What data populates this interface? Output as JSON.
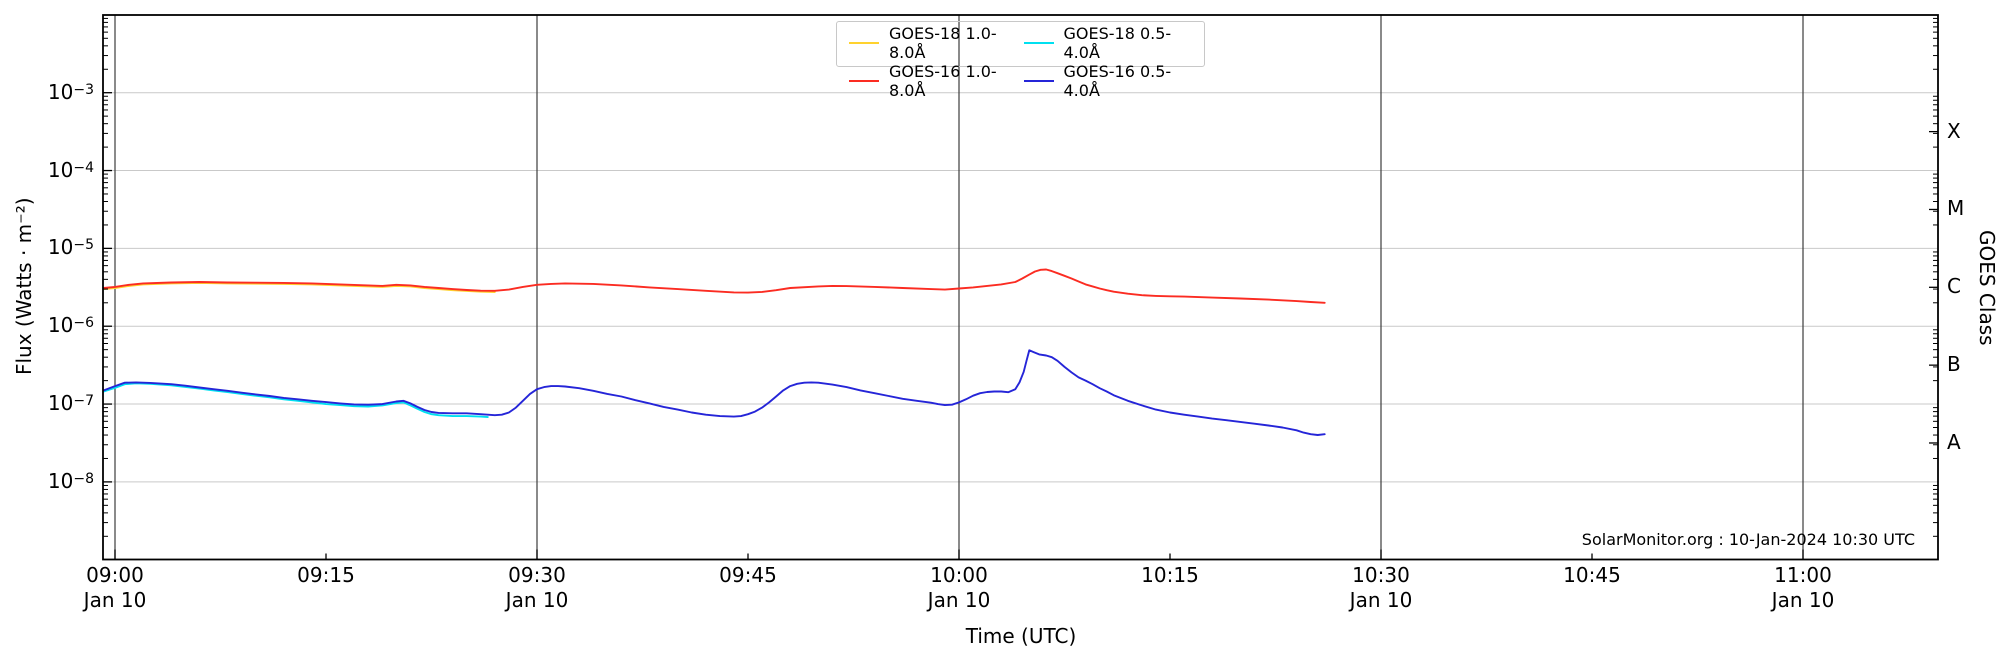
{
  "chart_data": {
    "type": "line",
    "title": "",
    "xlabel": "Time (UTC)",
    "ylabel": "Flux (Watts · m⁻²)",
    "right_axis_label": "GOES Class",
    "source_note": "SolarMonitor.org : 10-Jan-2024 10:30 UTC",
    "legend": {
      "position": "top-center",
      "columns": 2
    },
    "x_axis": {
      "unit": "minutes after 09:00 UTC",
      "date_label": "Jan 10",
      "ticks": [
        {
          "label": "09:00",
          "minutes": 0,
          "date": "Jan 10"
        },
        {
          "label": "09:15",
          "minutes": 15
        },
        {
          "label": "09:30",
          "minutes": 30,
          "date": "Jan 10"
        },
        {
          "label": "09:45",
          "minutes": 45
        },
        {
          "label": "10:00",
          "minutes": 60,
          "date": "Jan 10"
        },
        {
          "label": "10:15",
          "minutes": 75
        },
        {
          "label": "10:30",
          "minutes": 90,
          "date": "Jan 10"
        },
        {
          "label": "10:45",
          "minutes": 105
        },
        {
          "label": "11:00",
          "minutes": 120,
          "date": "Jan 10"
        }
      ],
      "halfhour_gridlines_minutes": [
        0,
        30,
        60,
        90,
        120
      ]
    },
    "y_axis": {
      "scale": "log",
      "min": 1e-09,
      "max": 0.01,
      "ticks": [
        {
          "base": "10",
          "exp": "−3",
          "exponent": -3
        },
        {
          "base": "10",
          "exp": "−4",
          "exponent": -4
        },
        {
          "base": "10",
          "exp": "−5",
          "exponent": -5
        },
        {
          "base": "10",
          "exp": "−6",
          "exponent": -6
        },
        {
          "base": "10",
          "exp": "−7",
          "exponent": -7
        },
        {
          "base": "10",
          "exp": "−8",
          "exponent": -8
        }
      ]
    },
    "right_axis": {
      "classes": [
        {
          "label": "X",
          "exponent": -3.5
        },
        {
          "label": "M",
          "exponent": -4.5
        },
        {
          "label": "C",
          "exponent": -5.5
        },
        {
          "label": "B",
          "exponent": -6.5
        },
        {
          "label": "A",
          "exponent": -7.5
        }
      ]
    },
    "series": [
      {
        "name": "GOES-18 1.0-8.0Å",
        "color": "#ffd22e",
        "points": [
          [
            -0.8,
            3e-06
          ],
          [
            0,
            3.1e-06
          ],
          [
            1,
            3.3e-06
          ],
          [
            2,
            3.45e-06
          ],
          [
            4,
            3.55e-06
          ],
          [
            6,
            3.6e-06
          ],
          [
            8,
            3.55e-06
          ],
          [
            10,
            3.52e-06
          ],
          [
            12,
            3.5e-06
          ],
          [
            14,
            3.45e-06
          ],
          [
            16,
            3.35e-06
          ],
          [
            18,
            3.25e-06
          ],
          [
            19,
            3.2e-06
          ],
          [
            20,
            3.3e-06
          ],
          [
            21,
            3.25e-06
          ],
          [
            22,
            3.1e-06
          ],
          [
            23,
            3e-06
          ],
          [
            24,
            2.9e-06
          ],
          [
            25,
            2.84e-06
          ],
          [
            26,
            2.78e-06
          ],
          [
            27,
            2.75e-06
          ]
        ]
      },
      {
        "name": "GOES-16 1.0-8.0Å",
        "color": "#fb2c22",
        "points": [
          [
            -0.8,
            3.1e-06
          ],
          [
            0,
            3.2e-06
          ],
          [
            1,
            3.4e-06
          ],
          [
            2,
            3.55e-06
          ],
          [
            4,
            3.65e-06
          ],
          [
            6,
            3.7e-06
          ],
          [
            8,
            3.65e-06
          ],
          [
            10,
            3.62e-06
          ],
          [
            12,
            3.6e-06
          ],
          [
            14,
            3.55e-06
          ],
          [
            16,
            3.45e-06
          ],
          [
            18,
            3.35e-06
          ],
          [
            19,
            3.3e-06
          ],
          [
            20,
            3.4e-06
          ],
          [
            21,
            3.35e-06
          ],
          [
            22,
            3.2e-06
          ],
          [
            23,
            3.1e-06
          ],
          [
            24,
            3e-06
          ],
          [
            25,
            2.92e-06
          ],
          [
            26,
            2.86e-06
          ],
          [
            27,
            2.85e-06
          ],
          [
            28,
            2.95e-06
          ],
          [
            29,
            3.2e-06
          ],
          [
            30,
            3.4e-06
          ],
          [
            31,
            3.5e-06
          ],
          [
            32,
            3.55e-06
          ],
          [
            34,
            3.5e-06
          ],
          [
            36,
            3.35e-06
          ],
          [
            38,
            3.15e-06
          ],
          [
            40,
            3e-06
          ],
          [
            42,
            2.85e-06
          ],
          [
            44,
            2.72e-06
          ],
          [
            45,
            2.7e-06
          ],
          [
            46,
            2.76e-06
          ],
          [
            47,
            2.9e-06
          ],
          [
            48,
            3.1e-06
          ],
          [
            50,
            3.25e-06
          ],
          [
            51,
            3.3e-06
          ],
          [
            52,
            3.28e-06
          ],
          [
            54,
            3.2e-06
          ],
          [
            56,
            3.1e-06
          ],
          [
            58,
            3e-06
          ],
          [
            59,
            2.95e-06
          ],
          [
            60,
            3.05e-06
          ],
          [
            61,
            3.15e-06
          ],
          [
            62,
            3.3e-06
          ],
          [
            63,
            3.45e-06
          ],
          [
            64,
            3.7e-06
          ],
          [
            64.5,
            4.1e-06
          ],
          [
            65,
            4.6e-06
          ],
          [
            65.4,
            5.05e-06
          ],
          [
            65.8,
            5.3e-06
          ],
          [
            66.2,
            5.35e-06
          ],
          [
            66.6,
            5.1e-06
          ],
          [
            67,
            4.8e-06
          ],
          [
            67.5,
            4.45e-06
          ],
          [
            68,
            4.1e-06
          ],
          [
            68.5,
            3.75e-06
          ],
          [
            69,
            3.45e-06
          ],
          [
            69.5,
            3.25e-06
          ],
          [
            70,
            3.05e-06
          ],
          [
            70.5,
            2.9e-06
          ],
          [
            71,
            2.78e-06
          ],
          [
            72,
            2.62e-06
          ],
          [
            73,
            2.5e-06
          ],
          [
            74,
            2.45e-06
          ],
          [
            75,
            2.42e-06
          ],
          [
            76,
            2.4e-06
          ],
          [
            78,
            2.33e-06
          ],
          [
            80,
            2.27e-06
          ],
          [
            82,
            2.2e-06
          ],
          [
            84,
            2.1e-06
          ],
          [
            85,
            2.05e-06
          ],
          [
            86,
            2e-06
          ]
        ]
      },
      {
        "name": "GOES-18 0.5-4.0Å",
        "color": "#00e0f0",
        "points": [
          [
            -0.8,
            1.45e-07
          ],
          [
            0,
            1.62e-07
          ],
          [
            0.7,
            1.8e-07
          ],
          [
            1.5,
            1.85e-07
          ],
          [
            2.5,
            1.82e-07
          ],
          [
            4,
            1.74e-07
          ],
          [
            5,
            1.66e-07
          ],
          [
            6,
            1.58e-07
          ],
          [
            7,
            1.5e-07
          ],
          [
            8,
            1.43e-07
          ],
          [
            9,
            1.35e-07
          ],
          [
            10,
            1.28e-07
          ],
          [
            11,
            1.22e-07
          ],
          [
            12,
            1.15e-07
          ],
          [
            13,
            1.1e-07
          ],
          [
            14,
            1.05e-07
          ],
          [
            15,
            1e-07
          ],
          [
            16,
            9.7e-08
          ],
          [
            17,
            9.4e-08
          ],
          [
            18,
            9.3e-08
          ],
          [
            19,
            9.6e-08
          ],
          [
            20,
            1.03e-07
          ],
          [
            20.5,
            1.05e-07
          ],
          [
            21,
            9.6e-08
          ],
          [
            21.5,
            8.7e-08
          ],
          [
            22,
            7.9e-08
          ],
          [
            22.5,
            7.4e-08
          ],
          [
            23,
            7.2e-08
          ],
          [
            24,
            7e-08
          ],
          [
            25,
            7e-08
          ],
          [
            26,
            6.9e-08
          ],
          [
            26.5,
            6.8e-08
          ]
        ]
      },
      {
        "name": "GOES-16 0.5-4.0Å",
        "color": "#2525d8",
        "points": [
          [
            -0.8,
            1.5e-07
          ],
          [
            0,
            1.7e-07
          ],
          [
            0.7,
            1.88e-07
          ],
          [
            1.5,
            1.9e-07
          ],
          [
            2.5,
            1.87e-07
          ],
          [
            4,
            1.8e-07
          ],
          [
            5,
            1.72e-07
          ],
          [
            6,
            1.63e-07
          ],
          [
            7,
            1.55e-07
          ],
          [
            8,
            1.48e-07
          ],
          [
            9,
            1.4e-07
          ],
          [
            10,
            1.33e-07
          ],
          [
            11,
            1.27e-07
          ],
          [
            12,
            1.2e-07
          ],
          [
            13,
            1.15e-07
          ],
          [
            14,
            1.1e-07
          ],
          [
            15,
            1.06e-07
          ],
          [
            16,
            1.02e-07
          ],
          [
            17,
            9.9e-08
          ],
          [
            18,
            9.8e-08
          ],
          [
            19,
            1e-07
          ],
          [
            20,
            1.08e-07
          ],
          [
            20.5,
            1.1e-07
          ],
          [
            21,
            1.02e-07
          ],
          [
            21.5,
            9.2e-08
          ],
          [
            22,
            8.4e-08
          ],
          [
            22.5,
            7.9e-08
          ],
          [
            23,
            7.7e-08
          ],
          [
            24,
            7.6e-08
          ],
          [
            25,
            7.6e-08
          ],
          [
            26,
            7.4e-08
          ],
          [
            27,
            7.2e-08
          ],
          [
            27.5,
            7.3e-08
          ],
          [
            28,
            7.8e-08
          ],
          [
            28.5,
            9e-08
          ],
          [
            29,
            1.1e-07
          ],
          [
            29.5,
            1.35e-07
          ],
          [
            30,
            1.55e-07
          ],
          [
            30.5,
            1.65e-07
          ],
          [
            31,
            1.7e-07
          ],
          [
            31.5,
            1.7e-07
          ],
          [
            32,
            1.68e-07
          ],
          [
            33,
            1.6e-07
          ],
          [
            34,
            1.48e-07
          ],
          [
            35,
            1.35e-07
          ],
          [
            36,
            1.25e-07
          ],
          [
            37,
            1.12e-07
          ],
          [
            38,
            1.02e-07
          ],
          [
            39,
            9.2e-08
          ],
          [
            40,
            8.5e-08
          ],
          [
            41,
            7.8e-08
          ],
          [
            42,
            7.3e-08
          ],
          [
            43,
            7e-08
          ],
          [
            44,
            6.9e-08
          ],
          [
            44.5,
            7e-08
          ],
          [
            45,
            7.4e-08
          ],
          [
            45.5,
            8e-08
          ],
          [
            46,
            9e-08
          ],
          [
            46.5,
            1.05e-07
          ],
          [
            47,
            1.25e-07
          ],
          [
            47.5,
            1.5e-07
          ],
          [
            48,
            1.7e-07
          ],
          [
            48.5,
            1.82e-07
          ],
          [
            49,
            1.88e-07
          ],
          [
            49.5,
            1.9e-07
          ],
          [
            50,
            1.88e-07
          ],
          [
            51,
            1.78e-07
          ],
          [
            52,
            1.65e-07
          ],
          [
            53,
            1.5e-07
          ],
          [
            54,
            1.38e-07
          ],
          [
            55,
            1.27e-07
          ],
          [
            56,
            1.17e-07
          ],
          [
            57,
            1.1e-07
          ],
          [
            58,
            1.04e-07
          ],
          [
            58.5,
            1e-07
          ],
          [
            59,
            9.7e-08
          ],
          [
            59.5,
            9.8e-08
          ],
          [
            60,
            1.05e-07
          ],
          [
            60.5,
            1.15e-07
          ],
          [
            61,
            1.28e-07
          ],
          [
            61.5,
            1.38e-07
          ],
          [
            62,
            1.43e-07
          ],
          [
            62.5,
            1.45e-07
          ],
          [
            63,
            1.45e-07
          ],
          [
            63.5,
            1.42e-07
          ],
          [
            64,
            1.55e-07
          ],
          [
            64.3,
            1.9e-07
          ],
          [
            64.6,
            2.6e-07
          ],
          [
            64.8,
            3.6e-07
          ],
          [
            65,
            4.9e-07
          ],
          [
            65.3,
            4.65e-07
          ],
          [
            65.7,
            4.35e-07
          ],
          [
            66.2,
            4.2e-07
          ],
          [
            66.6,
            4e-07
          ],
          [
            67,
            3.6e-07
          ],
          [
            67.5,
            3e-07
          ],
          [
            68,
            2.55e-07
          ],
          [
            68.5,
            2.2e-07
          ],
          [
            69,
            2e-07
          ],
          [
            69.5,
            1.8e-07
          ],
          [
            70,
            1.6e-07
          ],
          [
            70.5,
            1.45e-07
          ],
          [
            71,
            1.3e-07
          ],
          [
            72,
            1.1e-07
          ],
          [
            73,
            9.6e-08
          ],
          [
            74,
            8.5e-08
          ],
          [
            75,
            7.8e-08
          ],
          [
            76,
            7.3e-08
          ],
          [
            77,
            6.9e-08
          ],
          [
            78,
            6.5e-08
          ],
          [
            79,
            6.2e-08
          ],
          [
            80,
            5.9e-08
          ],
          [
            81,
            5.6e-08
          ],
          [
            82,
            5.3e-08
          ],
          [
            83,
            5e-08
          ],
          [
            84,
            4.6e-08
          ],
          [
            84.5,
            4.3e-08
          ],
          [
            85,
            4.1e-08
          ],
          [
            85.5,
            4e-08
          ],
          [
            86,
            4.1e-08
          ]
        ]
      }
    ]
  }
}
